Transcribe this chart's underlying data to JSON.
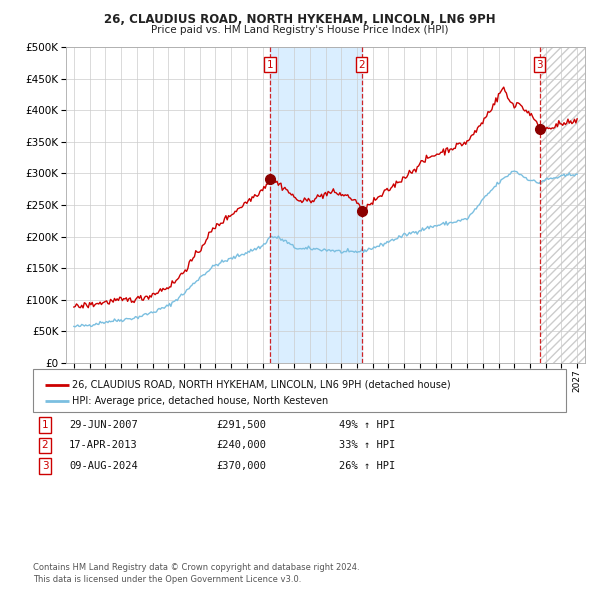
{
  "title": "26, CLAUDIUS ROAD, NORTH HYKEHAM, LINCOLN, LN6 9PH",
  "subtitle": "Price paid vs. HM Land Registry's House Price Index (HPI)",
  "legend_line1": "26, CLAUDIUS ROAD, NORTH HYKEHAM, LINCOLN, LN6 9PH (detached house)",
  "legend_line2": "HPI: Average price, detached house, North Kesteven",
  "footer1": "Contains HM Land Registry data © Crown copyright and database right 2024.",
  "footer2": "This data is licensed under the Open Government Licence v3.0.",
  "transactions": [
    {
      "num": 1,
      "date": "29-JUN-2007",
      "price": 291500,
      "pct": "49%",
      "dir": "↑"
    },
    {
      "num": 2,
      "date": "17-APR-2013",
      "price": 240000,
      "pct": "33%",
      "dir": "↑"
    },
    {
      "num": 3,
      "date": "09-AUG-2024",
      "price": 370000,
      "pct": "26%",
      "dir": "↑"
    }
  ],
  "transaction_dates_decimal": [
    2007.49,
    2013.29,
    2024.61
  ],
  "hpi_color": "#7bbfe0",
  "price_color": "#cc0000",
  "marker_color": "#8b0000",
  "bg_color": "#ffffff",
  "grid_color": "#cccccc",
  "highlight_color_between": "#daeeff",
  "ylim": [
    0,
    500000
  ],
  "yticks": [
    0,
    50000,
    100000,
    150000,
    200000,
    250000,
    300000,
    350000,
    400000,
    450000,
    500000
  ],
  "xlim_start": 1994.5,
  "xlim_end": 2027.5,
  "xticks": [
    1995,
    1996,
    1997,
    1998,
    1999,
    2000,
    2001,
    2002,
    2003,
    2004,
    2005,
    2006,
    2007,
    2008,
    2009,
    2010,
    2011,
    2012,
    2013,
    2014,
    2015,
    2016,
    2017,
    2018,
    2019,
    2020,
    2021,
    2022,
    2023,
    2024,
    2025,
    2026,
    2027
  ]
}
